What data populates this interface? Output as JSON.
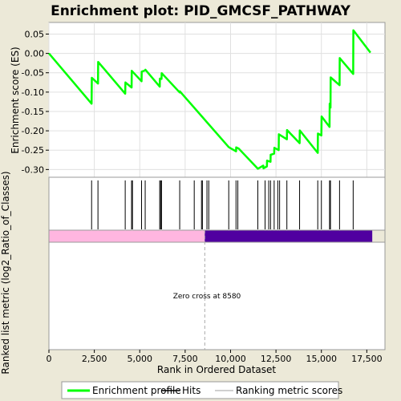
{
  "chart_data": {
    "type": "line",
    "title": "Enrichment plot: PID_GMCSF_PATHWAY",
    "xlabel": "Rank in Ordered Dataset",
    "ylabel_top": "Enrichment score (ES)",
    "ylabel_bottom": "Ranked list metric (log2_Ratio_of_Classes)",
    "xlim": [
      0,
      18500
    ],
    "ylim": [
      -0.32,
      0.08
    ],
    "x_ticks": [
      0,
      2500,
      5000,
      7500,
      10000,
      12500,
      15000,
      17500
    ],
    "x_tick_labels": [
      "0",
      "2,500",
      "5,000",
      "7,500",
      "10,000",
      "12,500",
      "15,000",
      "17,500"
    ],
    "y_ticks": [
      0.05,
      0.0,
      -0.05,
      -0.1,
      -0.15,
      -0.2,
      -0.25,
      -0.3
    ],
    "y_tick_labels": [
      "0.05",
      "0.00",
      "-0.05",
      "-0.10",
      "-0.15",
      "-0.20",
      "-0.25",
      "-0.30"
    ],
    "grid": true,
    "series": [
      {
        "name": "Enrichment profile",
        "color": "#00ff00",
        "x": [
          0,
          2350,
          2360,
          2700,
          2710,
          4200,
          4210,
          4550,
          4560,
          5100,
          5110,
          5300,
          5310,
          6100,
          6110,
          6200,
          6210,
          7200,
          7210,
          9900,
          10000,
          10300,
          10310,
          10450,
          11500,
          11800,
          11810,
          12000,
          12010,
          12200,
          12210,
          12400,
          12410,
          12650,
          12660,
          13100,
          13110,
          13800,
          13810,
          14800,
          14810,
          15000,
          15010,
          15450,
          15460,
          15500,
          15510,
          16000,
          16010,
          16750,
          16760,
          17700
        ],
        "y": [
          0.0,
          -0.13,
          -0.063,
          -0.078,
          -0.022,
          -0.104,
          -0.075,
          -0.088,
          -0.045,
          -0.072,
          -0.047,
          -0.044,
          -0.042,
          -0.086,
          -0.065,
          -0.066,
          -0.051,
          -0.101,
          -0.098,
          -0.242,
          -0.245,
          -0.253,
          -0.243,
          -0.246,
          -0.298,
          -0.29,
          -0.297,
          -0.292,
          -0.277,
          -0.28,
          -0.262,
          -0.259,
          -0.244,
          -0.25,
          -0.209,
          -0.222,
          -0.198,
          -0.232,
          -0.199,
          -0.257,
          -0.207,
          -0.212,
          -0.163,
          -0.19,
          -0.13,
          -0.14,
          -0.062,
          -0.082,
          -0.012,
          -0.053,
          0.06,
          0.002
        ]
      }
    ],
    "hits": [
      2350,
      2700,
      4200,
      4550,
      4600,
      5100,
      5300,
      6100,
      6150,
      6200,
      7200,
      8000,
      8400,
      8450,
      8700,
      8800,
      9900,
      10300,
      10400,
      11500,
      11900,
      12100,
      12200,
      12400,
      12600,
      12700,
      13100,
      13800,
      14800,
      15000,
      15450,
      15500,
      16000,
      16750
    ],
    "metric_band": {
      "positive_color": "#ffb6e0",
      "negative_color": "#5000a0",
      "start": 0,
      "zero_cross": 8580,
      "end": 17800
    },
    "annotation": "Zero cross at 8580",
    "legend": {
      "placement": "bottom",
      "items": [
        "Enrichment profile",
        "Hits",
        "Ranking metric scores"
      ],
      "colors": [
        "#00ff00",
        "#000000",
        "#c0c0c0"
      ]
    }
  }
}
